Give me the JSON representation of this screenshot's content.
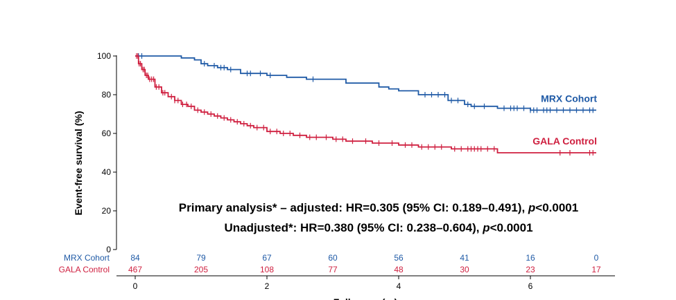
{
  "chart_data": {
    "type": "line",
    "title": "",
    "ylabel": "Event-free survival (%)",
    "xlabel": "Follow-up (yr)",
    "ylim": [
      0,
      100
    ],
    "xlim": [
      0,
      7
    ],
    "yticks": [
      0,
      20,
      40,
      60,
      80,
      100
    ],
    "xticks": [
      0,
      2,
      4,
      6
    ],
    "grid": false,
    "series": [
      {
        "name": "MRX Cohort",
        "color": "#1f5aa6",
        "x": [
          0,
          0.4,
          0.7,
          0.9,
          1.0,
          1.1,
          1.25,
          1.4,
          1.6,
          2.0,
          2.3,
          2.6,
          3.2,
          3.7,
          3.85,
          4.0,
          4.3,
          4.75,
          5.0,
          5.1,
          5.5,
          6.0,
          7.0
        ],
        "values": [
          100,
          100,
          99,
          98,
          96,
          95,
          94,
          93,
          91,
          90,
          89,
          88,
          86,
          84,
          83,
          82,
          80,
          77,
          75,
          74,
          73,
          72,
          72
        ],
        "censor_x": [
          0.05,
          0.1,
          1.05,
          1.2,
          1.3,
          1.35,
          1.45,
          1.7,
          1.75,
          1.9,
          2.05,
          2.7,
          4.4,
          4.5,
          4.6,
          4.7,
          4.8,
          4.9,
          5.05,
          5.15,
          5.3,
          5.6,
          5.7,
          5.75,
          5.8,
          5.9,
          6.0,
          6.05,
          6.1,
          6.2,
          6.25,
          6.3,
          6.4,
          6.5,
          6.6,
          6.7,
          6.8,
          6.9,
          6.95
        ],
        "end_label": "MRX Cohort"
      },
      {
        "name": "GALA Control",
        "color": "#cf1f3f",
        "x": [
          0,
          0.05,
          0.1,
          0.15,
          0.2,
          0.3,
          0.4,
          0.5,
          0.6,
          0.7,
          0.8,
          0.9,
          1.0,
          1.1,
          1.2,
          1.3,
          1.4,
          1.5,
          1.6,
          1.7,
          1.8,
          2.0,
          2.2,
          2.4,
          2.6,
          2.8,
          3.0,
          3.2,
          3.4,
          3.6,
          3.8,
          4.0,
          4.3,
          4.7,
          4.8,
          5.0,
          5.3,
          5.5,
          6.0,
          7.0
        ],
        "values": [
          100,
          96,
          93,
          90,
          88,
          84,
          81,
          79,
          77,
          75,
          74,
          72,
          71,
          70,
          69,
          68,
          67,
          66,
          65,
          64,
          63,
          61,
          60,
          59,
          58,
          58,
          57,
          56,
          56,
          55,
          55,
          54,
          53,
          53,
          52,
          52,
          52,
          50,
          50,
          50
        ],
        "censor_x": [
          0.02,
          0.04,
          0.06,
          0.08,
          0.12,
          0.14,
          0.17,
          0.19,
          0.22,
          0.25,
          0.28,
          0.32,
          0.36,
          0.42,
          0.45,
          0.55,
          0.6,
          0.65,
          0.72,
          0.78,
          0.85,
          0.95,
          1.05,
          1.15,
          1.25,
          1.35,
          1.45,
          1.55,
          1.65,
          1.75,
          1.85,
          1.95,
          2.05,
          2.15,
          2.25,
          2.35,
          2.5,
          2.65,
          2.75,
          2.9,
          3.05,
          3.15,
          3.3,
          3.5,
          3.7,
          3.9,
          4.1,
          4.2,
          4.35,
          4.45,
          4.55,
          4.65,
          4.85,
          4.95,
          5.05,
          5.1,
          5.15,
          5.2,
          5.25,
          5.35,
          5.45,
          6.45,
          6.6,
          6.9,
          6.95
        ],
        "end_label": "GALA Control"
      }
    ],
    "annotations": [
      {
        "text_parts": [
          "Primary analysis* – adjusted: HR=0.305 (95% CI: 0.189–0.491), ",
          "p",
          "<0.0001"
        ]
      },
      {
        "text_parts": [
          "Unadjusted*: HR=0.380 (95% CI: 0.238–0.604), ",
          "p",
          "<0.0001"
        ]
      }
    ],
    "at_risk": {
      "x": [
        0,
        1,
        2,
        3,
        4,
        5,
        6,
        7
      ],
      "rows": [
        {
          "label": "MRX Cohort",
          "color": "#1f5aa6",
          "values": [
            84,
            79,
            67,
            60,
            56,
            41,
            16,
            0
          ]
        },
        {
          "label": "GALA Control",
          "color": "#cf1f3f",
          "values": [
            467,
            205,
            108,
            77,
            48,
            30,
            23,
            17
          ]
        }
      ]
    }
  }
}
